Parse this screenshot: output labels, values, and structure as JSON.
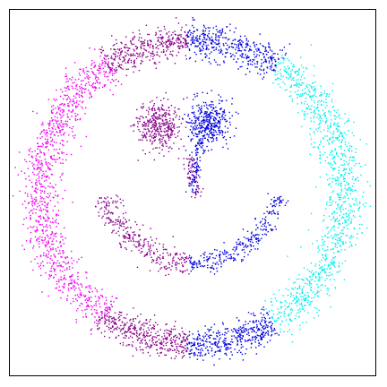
{
  "chart_data": {
    "type": "scatter",
    "title": "",
    "xlabel": "",
    "ylabel": "",
    "xlim": [
      -1.12,
      1.12
    ],
    "ylim": [
      -1.12,
      1.12
    ],
    "axes_ticks": "none",
    "grid": false,
    "legend": "none",
    "colors": {
      "magenta": "#ee00ee",
      "purple": "#880088",
      "blue": "#0000dd",
      "cyan": "#00eeee"
    },
    "clusters": [
      {
        "color": "magenta",
        "shape": "ring-arc",
        "radius": 0.93,
        "spread": 0.06,
        "angle_start_deg": 122,
        "angle_end_deg": 235,
        "count": 1100
      },
      {
        "color": "purple",
        "shape": "ring-arc",
        "radius": 0.93,
        "spread": 0.05,
        "angle_start_deg": 92,
        "angle_end_deg": 124,
        "count": 380
      },
      {
        "color": "purple",
        "shape": "ring-arc",
        "radius": 0.93,
        "spread": 0.05,
        "angle_start_deg": 233,
        "angle_end_deg": 268,
        "count": 420
      },
      {
        "color": "blue",
        "shape": "ring-arc",
        "radius": 0.93,
        "spread": 0.05,
        "angle_start_deg": 56,
        "angle_end_deg": 92,
        "count": 430
      },
      {
        "color": "blue",
        "shape": "ring-arc",
        "radius": 0.93,
        "spread": 0.05,
        "angle_start_deg": 268,
        "angle_end_deg": 302,
        "count": 420
      },
      {
        "color": "cyan",
        "shape": "ring-arc",
        "radius": 0.93,
        "spread": 0.06,
        "angle_start_deg": -58,
        "angle_end_deg": 57,
        "count": 1100
      },
      {
        "color": "purple",
        "shape": "ring-arc",
        "center": [
          0.0,
          0.12
        ],
        "radius": 0.55,
        "spread": 0.04,
        "angle_start_deg": 195,
        "angle_end_deg": 268,
        "count": 320
      },
      {
        "color": "blue",
        "shape": "ring-arc",
        "center": [
          0.0,
          0.12
        ],
        "radius": 0.55,
        "spread": 0.03,
        "angle_start_deg": 268,
        "angle_end_deg": 345,
        "count": 280
      },
      {
        "color": "purple",
        "shape": "blob",
        "center": [
          -0.2,
          0.41
        ],
        "sigma": [
          0.065,
          0.075
        ],
        "count": 360
      },
      {
        "color": "blue",
        "shape": "blob",
        "center": [
          0.1,
          0.43
        ],
        "sigma": [
          0.06,
          0.075
        ],
        "count": 380
      },
      {
        "color": "purple",
        "shape": "streak",
        "from": [
          -0.02,
          0.22
        ],
        "to": [
          0.02,
          -0.02
        ],
        "spread": 0.02,
        "count": 70
      },
      {
        "color": "blue",
        "shape": "streak",
        "from": [
          0.04,
          0.32
        ],
        "to": [
          0.0,
          0.0
        ],
        "spread": 0.02,
        "count": 90
      }
    ]
  }
}
